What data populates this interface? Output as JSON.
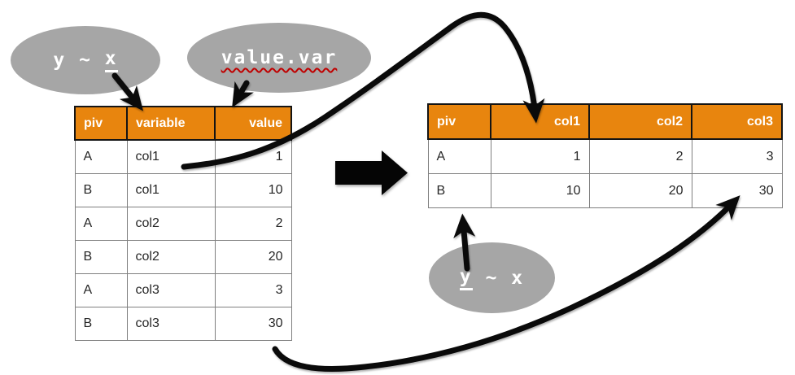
{
  "colors": {
    "orange": "#E8850E",
    "header_text": "#FFFFFF",
    "cell_light": "#F2F2F2",
    "cell_mid": "#BFBFBF",
    "cell_white": "#FFFFFF",
    "piv_gradient_dark": "#8F8F8F",
    "piv_gradient_light": "#E2E2E2",
    "ellipse_gray": "#A6A6A6",
    "squiggle_red": "#C00000",
    "arrow_black": "#0A0A0A",
    "body_text": "#262626"
  },
  "left_table": {
    "headers": [
      {
        "label": "piv",
        "align": "left"
      },
      {
        "label": "variable",
        "align": "left"
      },
      {
        "label": "value",
        "align": "right"
      }
    ],
    "rows": [
      {
        "piv": "A",
        "variable": "col1",
        "value": "1",
        "shade": "light"
      },
      {
        "piv": "B",
        "variable": "col1",
        "value": "10",
        "shade": "mid"
      },
      {
        "piv": "A",
        "variable": "col2",
        "value": "2",
        "shade": "white"
      },
      {
        "piv": "B",
        "variable": "col2",
        "value": "20",
        "shade": "light"
      },
      {
        "piv": "A",
        "variable": "col3",
        "value": "3",
        "shade": "mid"
      },
      {
        "piv": "B",
        "variable": "col3",
        "value": "30",
        "shade": "white"
      }
    ]
  },
  "right_table": {
    "headers": [
      {
        "label": "piv",
        "align": "left",
        "shade": null
      },
      {
        "label": "col1",
        "align": "right",
        "shade": "light"
      },
      {
        "label": "col2",
        "align": "right",
        "shade": "mid"
      },
      {
        "label": "col3",
        "align": "right",
        "shade": "white"
      }
    ],
    "rows": [
      {
        "piv": "A",
        "values": [
          "1",
          "2",
          "3"
        ]
      },
      {
        "piv": "B",
        "values": [
          "10",
          "20",
          "30"
        ]
      }
    ]
  },
  "callouts": {
    "formula_melt": {
      "segments": [
        {
          "text": "y ~ ",
          "underline": false
        },
        {
          "text": "x",
          "underline": true
        }
      ],
      "squiggle": false
    },
    "value_var": {
      "segments": [
        {
          "text": "value.var",
          "underline": false
        }
      ],
      "squiggle": true
    },
    "formula_cast": {
      "segments": [
        {
          "text": "y",
          "underline": true
        },
        {
          "text": " ~ x",
          "underline": false
        }
      ],
      "squiggle": false
    }
  }
}
